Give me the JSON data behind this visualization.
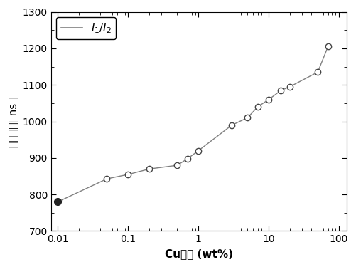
{
  "x": [
    0.01,
    0.05,
    0.1,
    0.2,
    0.5,
    0.7,
    1.0,
    3.0,
    5.0,
    7.0,
    10.0,
    15.0,
    20.0,
    50.0,
    70.0
  ],
  "y": [
    780,
    843,
    855,
    870,
    880,
    898,
    920,
    990,
    1010,
    1040,
    1060,
    1085,
    1095,
    1135,
    1205
  ],
  "xlim": [
    0.008,
    130
  ],
  "ylim": [
    700,
    1300
  ],
  "xlabel_cn": "Cu含量",
  "xlabel_en": " (wt%)",
  "ylabel_line1": "最佳延时（ns）",
  "legend_label": "$I_1/I_2$",
  "line_color": "#808080",
  "title": "",
  "yticks": [
    700,
    800,
    900,
    1000,
    1100,
    1200,
    1300
  ],
  "xticks": [
    0.01,
    0.1,
    1,
    10,
    100
  ],
  "xtick_labels": [
    "0.01",
    "0.1",
    "1",
    "10",
    "100"
  ]
}
